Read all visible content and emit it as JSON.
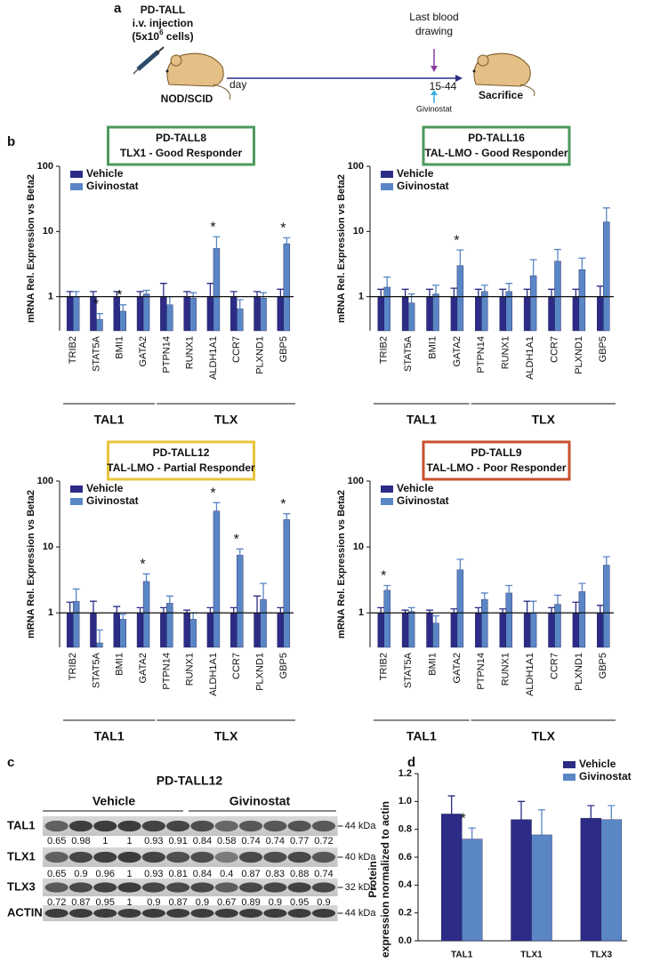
{
  "panel_a": {
    "label": "a",
    "model": "PD-TALL",
    "route": "i.v. injection",
    "dose": "(5x10",
    "dose_exponent": "6",
    "dose_unit": " cells)",
    "strain": "NOD/SCID",
    "axis_label": "day",
    "blood_drawing": [
      "Last blood",
      "drawing"
    ],
    "days": "15-44",
    "treatment": "Givinostat",
    "endpoint": "Sacrifice"
  },
  "chart_data": [
    {
      "type": "bar",
      "log_scale": true,
      "panel_label": "b",
      "title": "PD-TALL8",
      "subtitle": "TLX1 - Good Responder",
      "box_color": "#4e9a5e",
      "ylabel": "mRNA Rel. Expression vs Beta2",
      "categories": [
        "TRIB2",
        "STAT5A",
        "BMI1",
        "GATA2",
        "PTPN14",
        "RUNX1",
        "ALDH1A1",
        "CCR7",
        "PLXND1",
        "GBP5"
      ],
      "groups": [
        {
          "label": "TAL1",
          "categories": [
            "TRIB2",
            "STAT5A",
            "BMI1",
            "GATA2"
          ]
        },
        {
          "label": "TLX",
          "categories": [
            "PTPN14",
            "RUNX1",
            "ALDH1A1",
            "CCR7",
            "PLXND1",
            "GBP5"
          ]
        }
      ],
      "series": [
        {
          "name": "Vehicle",
          "color": "#2c2c86",
          "values": [
            1,
            1,
            1,
            1,
            1,
            1,
            1,
            1,
            1,
            1
          ],
          "errors": [
            0.2,
            0.2,
            0.2,
            0.2,
            0.6,
            0.2,
            0.6,
            0.2,
            0.2,
            0.3
          ]
        },
        {
          "name": "Givinostat",
          "color": "#5a86c6",
          "values": [
            1.0,
            0.45,
            0.6,
            1.1,
            0.75,
            0.95,
            5.5,
            0.65,
            0.95,
            6.5
          ],
          "errors": [
            0.2,
            0.1,
            0.15,
            0.15,
            0.25,
            0.2,
            2.8,
            0.25,
            0.2,
            1.5
          ],
          "significance": [
            null,
            "*",
            "*",
            null,
            null,
            null,
            "*",
            null,
            null,
            "*"
          ]
        }
      ],
      "ylim": [
        0.3,
        100
      ],
      "yticks": [
        1,
        10,
        100
      ],
      "hline": 1,
      "legend": "upper left"
    },
    {
      "type": "bar",
      "log_scale": true,
      "title": "PD-TALL16",
      "subtitle": "TAL-LMO - Good Responder",
      "box_color": "#4e9a5e",
      "ylabel": "mRNA Rel. Expression vs Beta2",
      "categories": [
        "TRIB2",
        "STAT5A",
        "BMI1",
        "GATA2",
        "PTPN14",
        "RUNX1",
        "ALDH1A1",
        "CCR7",
        "PLXND1",
        "GBP5"
      ],
      "groups": [
        {
          "label": "TAL1",
          "categories": [
            "TRIB2",
            "STAT5A",
            "BMI1",
            "GATA2"
          ]
        },
        {
          "label": "TLX",
          "categories": [
            "PTPN14",
            "RUNX1",
            "ALDH1A1",
            "CCR7",
            "PLXND1",
            "GBP5"
          ]
        }
      ],
      "series": [
        {
          "name": "Vehicle",
          "color": "#2c2c86",
          "values": [
            1,
            1,
            1,
            1,
            1,
            1,
            1,
            1,
            1,
            1
          ],
          "errors": [
            0.3,
            0.3,
            0.3,
            0.35,
            0.3,
            0.3,
            0.3,
            0.3,
            0.3,
            0.45
          ]
        },
        {
          "name": "Givinostat",
          "color": "#5a86c6",
          "values": [
            1.4,
            0.8,
            1.1,
            3.0,
            1.2,
            1.2,
            2.1,
            3.5,
            2.6,
            14
          ],
          "errors": [
            0.6,
            0.3,
            0.4,
            2.2,
            0.3,
            0.4,
            1.6,
            1.8,
            1.3,
            9
          ],
          "significance": [
            null,
            null,
            null,
            "*",
            null,
            null,
            null,
            null,
            null,
            null
          ]
        }
      ],
      "ylim": [
        0.3,
        100
      ],
      "yticks": [
        1,
        10,
        100
      ],
      "hline": 1,
      "legend": "upper left"
    },
    {
      "type": "bar",
      "log_scale": true,
      "title": "PD-TALL12",
      "subtitle": "TAL-LMO - Partial Responder",
      "box_color": "#e8c43a",
      "ylabel": "mRNA Rel. Expression vs Beta2",
      "categories": [
        "TRIB2",
        "STAT5A",
        "BMI1",
        "GATA2",
        "PTPN14",
        "RUNX1",
        "ALDH1A1",
        "CCR7",
        "PLXND1",
        "GBP5"
      ],
      "groups": [
        {
          "label": "TAL1",
          "categories": [
            "TRIB2",
            "STAT5A",
            "BMI1",
            "GATA2"
          ]
        },
        {
          "label": "TLX",
          "categories": [
            "PTPN14",
            "RUNX1",
            "ALDH1A1",
            "CCR7",
            "PLXND1",
            "GBP5"
          ]
        }
      ],
      "series": [
        {
          "name": "Vehicle",
          "color": "#2c2c86",
          "values": [
            1,
            1,
            1,
            1,
            1,
            1,
            1,
            1,
            1,
            1
          ],
          "errors": [
            0.45,
            0.5,
            0.25,
            0.2,
            0.2,
            0.1,
            0.2,
            0.2,
            0.8,
            0.2
          ]
        },
        {
          "name": "Givinostat",
          "color": "#5a86c6",
          "values": [
            1.5,
            0.35,
            0.8,
            3.0,
            1.4,
            0.8,
            35,
            7.5,
            1.6,
            26
          ],
          "errors": [
            0.8,
            0.2,
            0.15,
            0.9,
            0.4,
            0.2,
            12,
            1.8,
            1.2,
            6
          ],
          "significance": [
            null,
            null,
            null,
            "*",
            null,
            null,
            "*",
            "*",
            null,
            "*"
          ]
        }
      ],
      "ylim": [
        0.3,
        100
      ],
      "yticks": [
        1,
        10,
        100
      ],
      "hline": 1,
      "legend": "upper left"
    },
    {
      "type": "bar",
      "log_scale": true,
      "title": "PD-TALL9",
      "subtitle": "TAL-LMO - Poor Responder",
      "box_color": "#c8502e",
      "ylabel": "mRNA Rel. Expression vs Beta2",
      "categories": [
        "TRIB2",
        "STAT5A",
        "BMI1",
        "GATA2",
        "PTPN14",
        "RUNX1",
        "ALDH1A1",
        "CCR7",
        "PLXND1",
        "GBP5"
      ],
      "groups": [
        {
          "label": "TAL1",
          "categories": [
            "TRIB2",
            "STAT5A",
            "BMI1",
            "GATA2"
          ]
        },
        {
          "label": "TLX",
          "categories": [
            "PTPN14",
            "RUNX1",
            "ALDH1A1",
            "CCR7",
            "PLXND1",
            "GBP5"
          ]
        }
      ],
      "series": [
        {
          "name": "Vehicle",
          "color": "#2c2c86",
          "values": [
            1,
            1,
            1,
            1,
            1,
            1,
            1,
            1,
            1,
            1
          ],
          "errors": [
            0.2,
            0.1,
            0.1,
            0.15,
            0.2,
            0.15,
            0.5,
            0.2,
            0.45,
            0.3
          ]
        },
        {
          "name": "Givinostat",
          "color": "#5a86c6",
          "values": [
            2.2,
            1.05,
            0.7,
            4.5,
            1.6,
            2.0,
            1.0,
            1.35,
            2.1,
            5.3
          ],
          "errors": [
            0.4,
            0.15,
            0.2,
            2.0,
            0.4,
            0.6,
            0.5,
            0.5,
            0.7,
            1.8
          ],
          "significance": [
            "*",
            null,
            null,
            null,
            null,
            null,
            null,
            null,
            null,
            null
          ]
        }
      ],
      "ylim": [
        0.3,
        100
      ],
      "yticks": [
        1,
        10,
        100
      ],
      "hline": 1,
      "legend": "upper left"
    },
    {
      "type": "bar",
      "log_scale": false,
      "panel_label": "d",
      "ylabel": [
        "Protein",
        "expression normalized to actin"
      ],
      "categories": [
        "TAL1",
        "TLX1",
        "TLX3"
      ],
      "series": [
        {
          "name": "Vehicle",
          "color": "#2c2c86",
          "values": [
            0.91,
            0.87,
            0.88
          ],
          "errors": [
            0.13,
            0.13,
            0.09
          ]
        },
        {
          "name": "Givinostat",
          "color": "#5a86c6",
          "values": [
            0.73,
            0.76,
            0.87
          ],
          "errors": [
            0.08,
            0.18,
            0.1
          ],
          "significance": [
            "*",
            null,
            null
          ]
        }
      ],
      "ylim": [
        0,
        1.2
      ],
      "yticks": [
        {
          "value": 0,
          "label": "0.0"
        },
        0.2,
        0.4,
        0.6,
        0.8,
        {
          "value": 1,
          "label": "1.0"
        },
        1.2
      ],
      "legend": "upper right"
    }
  ],
  "panel_c": {
    "label": "c",
    "title": "PD-TALL12",
    "groups": [
      "Vehicle",
      "Givinostat"
    ],
    "rows": [
      {
        "name": "TAL1",
        "size": "44 kDa",
        "quant": [
          0.65,
          0.98,
          1,
          1,
          0.93,
          0.91,
          0.84,
          0.58,
          0.74,
          0.74,
          0.77,
          0.72
        ]
      },
      {
        "name": "TLX1",
        "size": "40 kDa",
        "quant": [
          0.65,
          0.9,
          0.96,
          1,
          0.93,
          0.81,
          0.84,
          0.4,
          0.87,
          0.83,
          0.88,
          0.74
        ]
      },
      {
        "name": "TLX3",
        "size": "32 kDa",
        "quant": [
          0.72,
          0.87,
          0.95,
          1,
          0.9,
          0.87,
          0.9,
          0.67,
          0.89,
          0.9,
          0.95,
          0.9
        ]
      },
      {
        "name": "ACTIN",
        "size": "44 kDa"
      }
    ]
  }
}
